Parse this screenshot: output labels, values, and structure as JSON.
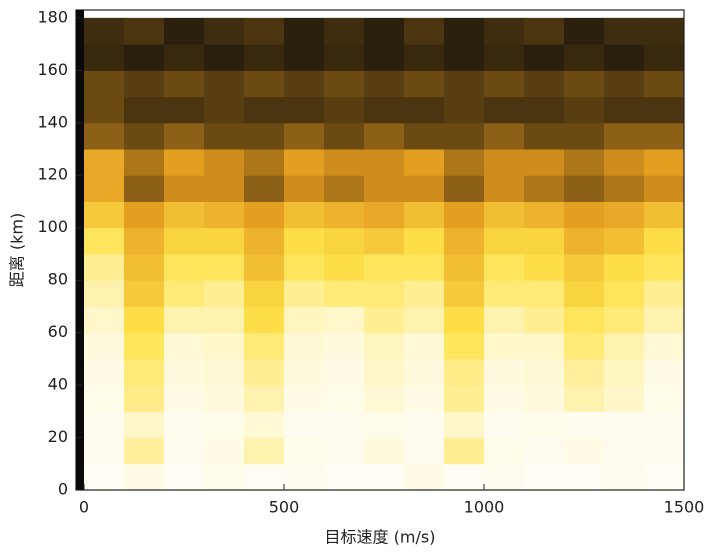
{
  "chart_data": {
    "type": "heatmap",
    "xlabel": "目标速度 (m/s)",
    "ylabel": "距离 (km)",
    "xlim": [
      0,
      1500
    ],
    "ylim": [
      0,
      183
    ],
    "xticks": [
      0,
      500,
      1000,
      1500
    ],
    "yticks": [
      0,
      20,
      40,
      60,
      80,
      100,
      120,
      140,
      160,
      180
    ],
    "x_edges": [
      0,
      100,
      200,
      300,
      400,
      500,
      600,
      700,
      800,
      900,
      1000,
      1100,
      1200,
      1300,
      1400,
      1500
    ],
    "y_edges": [
      0,
      10,
      20,
      30,
      40,
      50,
      60,
      70,
      80,
      90,
      100,
      110,
      120,
      130,
      140,
      150,
      160,
      170,
      180
    ],
    "colorscale": [
      "#ffffff",
      "#ffe24a",
      "#e39a1e",
      "#0a0a0a"
    ],
    "z": [
      [
        0.02,
        0.05,
        0.02,
        0.04,
        0.02,
        0.03,
        0.02,
        0.02,
        0.05,
        0.02,
        0.03,
        0.02,
        0.02,
        0.03,
        0.02
      ],
      [
        0.03,
        0.18,
        0.03,
        0.05,
        0.15,
        0.04,
        0.03,
        0.06,
        0.03,
        0.2,
        0.04,
        0.03,
        0.05,
        0.03,
        0.03
      ],
      [
        0.03,
        0.1,
        0.03,
        0.04,
        0.08,
        0.03,
        0.03,
        0.04,
        0.03,
        0.1,
        0.03,
        0.04,
        0.03,
        0.03,
        0.03
      ],
      [
        0.04,
        0.22,
        0.05,
        0.06,
        0.15,
        0.05,
        0.04,
        0.08,
        0.05,
        0.2,
        0.05,
        0.06,
        0.15,
        0.1,
        0.04
      ],
      [
        0.05,
        0.25,
        0.06,
        0.08,
        0.2,
        0.06,
        0.05,
        0.1,
        0.06,
        0.22,
        0.06,
        0.08,
        0.18,
        0.12,
        0.05
      ],
      [
        0.06,
        0.3,
        0.08,
        0.1,
        0.25,
        0.08,
        0.06,
        0.12,
        0.08,
        0.3,
        0.1,
        0.1,
        0.25,
        0.15,
        0.08
      ],
      [
        0.1,
        0.35,
        0.15,
        0.15,
        0.35,
        0.12,
        0.1,
        0.2,
        0.15,
        0.35,
        0.15,
        0.2,
        0.3,
        0.25,
        0.15
      ],
      [
        0.15,
        0.45,
        0.25,
        0.2,
        0.4,
        0.2,
        0.25,
        0.25,
        0.2,
        0.45,
        0.25,
        0.25,
        0.4,
        0.3,
        0.2
      ],
      [
        0.2,
        0.5,
        0.3,
        0.3,
        0.5,
        0.3,
        0.35,
        0.3,
        0.3,
        0.5,
        0.3,
        0.35,
        0.45,
        0.35,
        0.3
      ],
      [
        0.3,
        0.55,
        0.4,
        0.4,
        0.55,
        0.35,
        0.4,
        0.45,
        0.35,
        0.55,
        0.4,
        0.4,
        0.55,
        0.5,
        0.35
      ],
      [
        0.45,
        0.65,
        0.5,
        0.55,
        0.65,
        0.5,
        0.55,
        0.6,
        0.5,
        0.65,
        0.5,
        0.55,
        0.65,
        0.6,
        0.5
      ],
      [
        0.6,
        0.8,
        0.7,
        0.7,
        0.8,
        0.7,
        0.75,
        0.7,
        0.7,
        0.8,
        0.7,
        0.75,
        0.8,
        0.75,
        0.7
      ],
      [
        0.6,
        0.75,
        0.65,
        0.7,
        0.75,
        0.65,
        0.7,
        0.7,
        0.65,
        0.75,
        0.7,
        0.7,
        0.75,
        0.7,
        0.65
      ],
      [
        0.8,
        0.85,
        0.8,
        0.85,
        0.85,
        0.8,
        0.85,
        0.8,
        0.85,
        0.85,
        0.8,
        0.85,
        0.85,
        0.8,
        0.8
      ],
      [
        0.85,
        0.9,
        0.9,
        0.88,
        0.9,
        0.9,
        0.88,
        0.9,
        0.9,
        0.88,
        0.9,
        0.9,
        0.88,
        0.9,
        0.9
      ],
      [
        0.85,
        0.88,
        0.85,
        0.88,
        0.85,
        0.88,
        0.85,
        0.88,
        0.85,
        0.88,
        0.85,
        0.88,
        0.85,
        0.88,
        0.85
      ],
      [
        0.93,
        0.95,
        0.93,
        0.95,
        0.93,
        0.95,
        0.93,
        0.95,
        0.93,
        0.95,
        0.93,
        0.95,
        0.93,
        0.95,
        0.93
      ],
      [
        0.92,
        0.9,
        0.95,
        0.92,
        0.9,
        0.95,
        0.92,
        0.95,
        0.9,
        0.95,
        0.92,
        0.9,
        0.95,
        0.92,
        0.92
      ]
    ]
  }
}
